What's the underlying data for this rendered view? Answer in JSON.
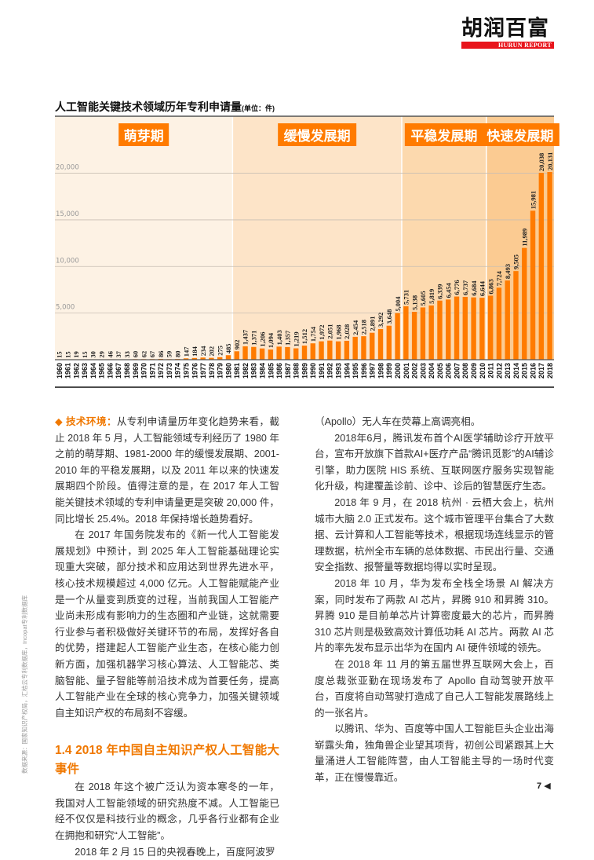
{
  "header": {
    "logo_cn": "胡润百富",
    "logo_en": "HURUN REPORT"
  },
  "chart_data": {
    "type": "bar",
    "title": "人工智能关键技术领域历年专利申请量",
    "unit": "(单位：件)",
    "categories": [
      "1960",
      "1961",
      "1962",
      "1963",
      "1964",
      "1965",
      "1966",
      "1967",
      "1968",
      "1969",
      "1970",
      "1971",
      "1972",
      "1973",
      "1974",
      "1975",
      "1976",
      "1977",
      "1978",
      "1979",
      "1980",
      "1981",
      "1982",
      "1983",
      "1984",
      "1985",
      "1986",
      "1987",
      "1988",
      "1989",
      "1990",
      "1991",
      "1992",
      "1993",
      "1994",
      "1995",
      "1996",
      "1997",
      "1998",
      "1999",
      "2000",
      "2001",
      "2002",
      "2003",
      "2004",
      "2005",
      "2006",
      "2007",
      "2008",
      "2009",
      "2010",
      "2011",
      "2012",
      "2013",
      "2014",
      "2015",
      "2016",
      "2017",
      "2018"
    ],
    "values": [
      15,
      15,
      19,
      15,
      30,
      29,
      46,
      37,
      33,
      60,
      62,
      67,
      86,
      59,
      80,
      147,
      184,
      234,
      202,
      275,
      485,
      902,
      1437,
      1371,
      1206,
      1094,
      1403,
      1357,
      1219,
      1512,
      1754,
      1972,
      2051,
      1968,
      2028,
      2454,
      2518,
      2891,
      3292,
      3648,
      5004,
      5731,
      5138,
      5605,
      5819,
      6339,
      6454,
      6776,
      6737,
      6684,
      6644,
      6863,
      7724,
      8493,
      9505,
      11989,
      15981,
      20038,
      20131
    ],
    "value_labels": [
      "15",
      "15",
      "19",
      "15",
      "30",
      "29",
      "46",
      "37",
      "33",
      "60",
      "62",
      "67",
      "86",
      "59",
      "80",
      "147",
      "184",
      "234",
      "202",
      "275",
      "485",
      "902",
      "1,437",
      "1,371",
      "1,206",
      "1,094",
      "1,403",
      "1,357",
      "1,219",
      "1,512",
      "1,754",
      "1,972",
      "2,051",
      "1,968",
      "2,028",
      "2,454",
      "2,518",
      "2,891",
      "3,292",
      "3,648",
      "5,004",
      "5,731",
      "5,138",
      "5,605",
      "5,819",
      "6,339",
      "6,454",
      "6,776",
      "6,737",
      "6,684",
      "6,644",
      "6,863",
      "7,724",
      "8,493",
      "9,505",
      "11,989",
      "15,981",
      "20,038",
      "20,131"
    ],
    "y_ticks": [
      {
        "value": 5000,
        "label": "5,000"
      },
      {
        "value": 10000,
        "label": "10,000"
      },
      {
        "value": 15000,
        "label": "15,000"
      },
      {
        "value": 20000,
        "label": "20,000"
      }
    ],
    "ylim": [
      0,
      21000
    ],
    "grid": true,
    "phases": [
      {
        "label": "萌芽期",
        "start": "1960",
        "end": "1980",
        "color": "#fdf2e4"
      },
      {
        "label": "缓慢发展期",
        "start": "1981",
        "end": "2000",
        "color": "#fde4c8"
      },
      {
        "label": "平稳发展期",
        "start": "2001",
        "end": "2010",
        "color": "#fcd9ae"
      },
      {
        "label": "快速发展期",
        "start": "2011",
        "end": "2018",
        "color": "#fbcb92"
      }
    ],
    "colors": {
      "bar": "#ff7b00",
      "phase_label_bg": "#ff7b00",
      "phase_label_text": "#ffffff"
    }
  },
  "article": {
    "left": {
      "lead_label": "◆ 技术环境：",
      "p1": "从专利申请量历年变化趋势来看，截止 2018 年 5 月，人工智能领域专利经历了 1980 年之前的萌芽期、1981-2000 年的缓慢发展期、2001-2010 年的平稳发展期，以及 2011 年以来的快速发展期四个阶段。值得注意的是，在 2017 年人工智能关键技术领域的专利申请量更是突破 20,000 件，同比增长 25.4%。2018 年保持增长趋势看好。",
      "p2": "在 2017 年国务院发布的《新一代人工智能发展规划》中预计，到 2025 年人工智能基础理论实现重大突破，部分技术和应用达到世界先进水平，核心技术规模超过 4,000 亿元。人工智能赋能产业是一个从量变到质变的过程，当前我国人工智能产业尚未形成有影响力的生态圈和产业链，这就需要行业参与者积极做好关键环节的布局，发挥好各自的优势，搭建起人工智能产业生态，在核心能力创新方面，加强机器学习核心算法、人工智能芯、类脑智能、量子智能等前沿技术成为首要任务，提高人工智能产业在全球的核心竞争力，加强关键领域自主知识产权的布局刻不容缓。",
      "heading": "1.4 2018 年中国自主知识产权人工智能大事件",
      "p3": "在 2018 年这个被广泛认为资本寒冬的一年，我国对人工智能领域的研究热度不减。人工智能已经不仅仅是科技行业的概念，几乎各行业都有企业在拥抱和研究“人工智能”。",
      "p4": "2018 年 2 月 15 日的央视春晚上，百度阿波罗"
    },
    "right": {
      "p0": "（Apollo）无人车在荧幕上高调亮相。",
      "p1": "2018年6月，腾讯发布首个AI医学辅助诊疗开放平台，宣布开放旗下首款AI+医疗产品“腾讯觅影”的AI辅诊引擎，助力医院 HIS 系统、互联网医疗服务实现智能化升级，构建覆盖诊前、诊中、诊后的智慧医疗生态。",
      "p2": "2018 年 9 月，在 2018 杭州 · 云栖大会上，杭州城市大脑 2.0 正式发布。这个城市管理平台集合了大数据、云计算和人工智能等技术，根据现场连线显示的管理数据，杭州全市车辆的总体数据、市民出行量、交通安全指数、报警量等数据均得以实时呈现。",
      "p3": "2018 年 10 月，华为发布全栈全场景 AI 解决方案，同时发布了两款 AI 芯片，昇腾 910 和昇腾 310。昇腾 910 是目前单芯片计算密度最大的芯片，而昇腾 310 芯片则是极致高效计算低功耗 AI 芯片。两款 AI 芯片的率先发布显示出华为在国内 AI 硬件领域的领先。",
      "p4": "在 2018 年 11 月的第五届世界互联网大会上，百度总裁张亚勤在现场发布了 Apollo 自动驾驶开放平台，百度将自动驾驶打造成了自己人工智能发展路线上的一张名片。",
      "p5": "以腾讯、华为、百度等中国人工智能巨头企业出海崭露头角，独角兽企业望其项背，初创公司紧跟其上大量涌进人工智能阵营，由人工智能主导的一场时代变革，正在慢慢靠近。"
    }
  },
  "sidebar_note": "数据来源：国家知识产权局，汇桔云专利数据库，Incopat专利数据库",
  "footer": {
    "page_number": "7",
    "arrow_icon": "◀"
  }
}
